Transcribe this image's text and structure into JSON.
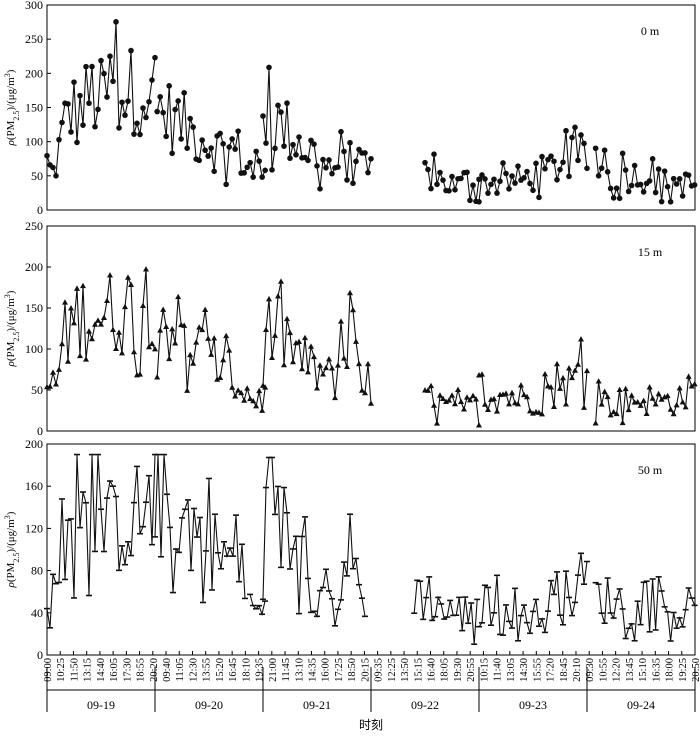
{
  "chart_data": {
    "type": "line",
    "xlabel": "时刻",
    "dates": [
      "09-19",
      "09-20",
      "09-21",
      "09-22",
      "09-23",
      "09-24"
    ],
    "time_ticks": [
      "09:00",
      "10:25",
      "11:50",
      "13:15",
      "14:40",
      "16:05",
      "17:30",
      "18:55",
      "20:20",
      "09:40",
      "11:05",
      "12:30",
      "13:55",
      "15:20",
      "16:45",
      "18:10",
      "19:35",
      "21:00",
      "11:45",
      "13:10",
      "14:35",
      "16:00",
      "17:25",
      "18:50",
      "20:15",
      "09:35",
      "12:25",
      "13:50",
      "15:15",
      "16:40",
      "18:05",
      "19:30",
      "20:55",
      "10:15",
      "11:40",
      "13:05",
      "14:30",
      "15:55",
      "17:20",
      "18:45",
      "20:10",
      "09:30",
      "10:55",
      "12:20",
      "13:45",
      "15:10",
      "16:35",
      "18:00",
      "19:25",
      "20:50"
    ],
    "series": [
      {
        "name": "0 m",
        "marker": "circle",
        "ylim": [
          0,
          300
        ],
        "yticks": [
          0,
          50,
          100,
          150,
          200,
          250,
          300
        ],
        "ylabel": "ρ(PM2.5)/(μg/m3)",
        "segments": [
          {
            "x0": 0,
            "x1": 1.02,
            "keys": [
              [
                0,
                70
              ],
              [
                0.05,
                50
              ],
              [
                0.1,
                80
              ],
              [
                0.2,
                150
              ],
              [
                0.3,
                140
              ],
              [
                0.4,
                170
              ],
              [
                0.5,
                160
              ],
              [
                0.6,
                185
              ],
              [
                0.7,
                170
              ],
              [
                0.8,
                175
              ],
              [
                0.9,
                180
              ],
              [
                0.97,
                150
              ],
              [
                1.02,
                140
              ]
            ]
          },
          {
            "x0": 1.02,
            "x1": 2.02,
            "keys": [
              [
                1.02,
                150
              ],
              [
                1.2,
                130
              ],
              [
                1.4,
                110
              ],
              [
                1.6,
                90
              ],
              [
                1.75,
                90
              ],
              [
                1.9,
                55
              ],
              [
                2.02,
                45
              ]
            ]
          },
          {
            "x0": 2.0,
            "x1": 3.0,
            "keys": [
              [
                2.0,
                140
              ],
              [
                2.2,
                120
              ],
              [
                2.4,
                90
              ],
              [
                2.55,
                75
              ],
              [
                2.65,
                60
              ],
              [
                2.8,
                110
              ],
              [
                2.9,
                60
              ],
              [
                3.0,
                55
              ]
            ]
          },
          {
            "x0": 3.5,
            "x1": 4.0,
            "keys": [
              [
                3.5,
                55
              ],
              [
                3.6,
                48
              ],
              [
                3.7,
                40
              ],
              [
                3.8,
                35
              ],
              [
                3.9,
                45
              ],
              [
                4.0,
                40
              ]
            ]
          },
          {
            "x0": 4.0,
            "x1": 5.0,
            "keys": [
              [
                4.0,
                40
              ],
              [
                4.2,
                40
              ],
              [
                4.4,
                45
              ],
              [
                4.6,
                55
              ],
              [
                4.8,
                72
              ],
              [
                5.0,
                80
              ]
            ]
          },
          {
            "x0": 5.08,
            "x1": 6.0,
            "keys": [
              [
                5.08,
                55
              ],
              [
                5.3,
                50
              ],
              [
                5.5,
                50
              ],
              [
                5.7,
                40
              ],
              [
                5.85,
                40
              ],
              [
                6.0,
                35
              ]
            ]
          }
        ]
      },
      {
        "name": "15 m",
        "marker": "triangle",
        "ylim": [
          0,
          250
        ],
        "yticks": [
          0,
          50,
          100,
          150,
          200,
          250
        ],
        "ylabel": "ρ(PM2.5)/(μg/m3)",
        "segments": [
          {
            "x0": 0,
            "x1": 1.02,
            "keys": [
              [
                0,
                55
              ],
              [
                0.08,
                55
              ],
              [
                0.15,
                110
              ],
              [
                0.25,
                135
              ],
              [
                0.4,
                145
              ],
              [
                0.55,
                140
              ],
              [
                0.7,
                150
              ],
              [
                0.85,
                150
              ],
              [
                0.97,
                170
              ],
              [
                1.02,
                150
              ]
            ]
          },
          {
            "x0": 1.02,
            "x1": 2.02,
            "keys": [
              [
                1.02,
                145
              ],
              [
                1.2,
                125
              ],
              [
                1.4,
                100
              ],
              [
                1.6,
                80
              ],
              [
                1.75,
                60
              ],
              [
                1.9,
                40
              ],
              [
                2.02,
                40
              ]
            ]
          },
          {
            "x0": 2.0,
            "x1": 3.0,
            "keys": [
              [
                2.0,
                125
              ],
              [
                2.2,
                115
              ],
              [
                2.4,
                80
              ],
              [
                2.55,
                70
              ],
              [
                2.65,
                60
              ],
              [
                2.8,
                110
              ],
              [
                2.9,
                60
              ],
              [
                3.0,
                45
              ]
            ]
          },
          {
            "x0": 3.5,
            "x1": 4.0,
            "keys": [
              [
                3.5,
                40
              ],
              [
                3.6,
                35
              ],
              [
                3.7,
                30
              ],
              [
                3.8,
                28
              ],
              [
                3.9,
                30
              ],
              [
                4.0,
                30
              ]
            ]
          },
          {
            "x0": 4.0,
            "x1": 5.0,
            "keys": [
              [
                4.0,
                40
              ],
              [
                4.2,
                45
              ],
              [
                4.4,
                40
              ],
              [
                4.6,
                40
              ],
              [
                4.8,
                55
              ],
              [
                5.0,
                75
              ]
            ]
          },
          {
            "x0": 5.08,
            "x1": 6.0,
            "keys": [
              [
                5.08,
                35
              ],
              [
                5.3,
                35
              ],
              [
                5.5,
                40
              ],
              [
                5.7,
                35
              ],
              [
                5.85,
                40
              ],
              [
                6.0,
                50
              ]
            ]
          }
        ]
      },
      {
        "name": "50 m",
        "marker": "bar",
        "ylim": [
          0,
          200
        ],
        "yticks": [
          0,
          40,
          80,
          120,
          160,
          200
        ],
        "ylabel": "ρ(PM2.5)/(μg/m3)",
        "segments": [
          {
            "x0": 0,
            "x1": 1.0,
            "keys": [
              [
                0,
                35
              ],
              [
                0.1,
                80
              ],
              [
                0.2,
                115
              ],
              [
                0.3,
                130
              ],
              [
                0.45,
                125
              ],
              [
                0.6,
                120
              ],
              [
                0.75,
                130
              ],
              [
                0.9,
                135
              ],
              [
                1.0,
                140
              ]
            ]
          },
          {
            "x0": 1.0,
            "x1": 1.85,
            "keys": [
              [
                1.0,
                145
              ],
              [
                1.2,
                130
              ],
              [
                1.4,
                120
              ],
              [
                1.55,
                100
              ],
              [
                1.7,
                90
              ],
              [
                1.85,
                70
              ]
            ]
          },
          {
            "x0": 1.88,
            "x1": 2.02,
            "keys": [
              [
                1.88,
                45
              ],
              [
                2.02,
                40
              ]
            ]
          },
          {
            "x0": 2.0,
            "x1": 2.95,
            "keys": [
              [
                2.0,
                120
              ],
              [
                2.2,
                120
              ],
              [
                2.35,
                90
              ],
              [
                2.5,
                60
              ],
              [
                2.65,
                40
              ],
              [
                2.8,
                100
              ],
              [
                2.95,
                40
              ]
            ]
          },
          {
            "x0": 3.4,
            "x1": 4.0,
            "keys": [
              [
                3.4,
                60
              ],
              [
                3.55,
                55
              ],
              [
                3.7,
                40
              ],
              [
                3.85,
                40
              ],
              [
                4.0,
                35
              ]
            ]
          },
          {
            "x0": 4.0,
            "x1": 5.0,
            "keys": [
              [
                4.0,
                45
              ],
              [
                4.2,
                55
              ],
              [
                4.4,
                40
              ],
              [
                4.6,
                35
              ],
              [
                4.8,
                55
              ],
              [
                5.0,
                75
              ]
            ]
          },
          {
            "x0": 5.08,
            "x1": 6.0,
            "keys": [
              [
                5.08,
                55
              ],
              [
                5.3,
                50
              ],
              [
                5.5,
                40
              ],
              [
                5.7,
                45
              ],
              [
                5.85,
                40
              ],
              [
                6.0,
                35
              ]
            ]
          }
        ]
      }
    ]
  }
}
